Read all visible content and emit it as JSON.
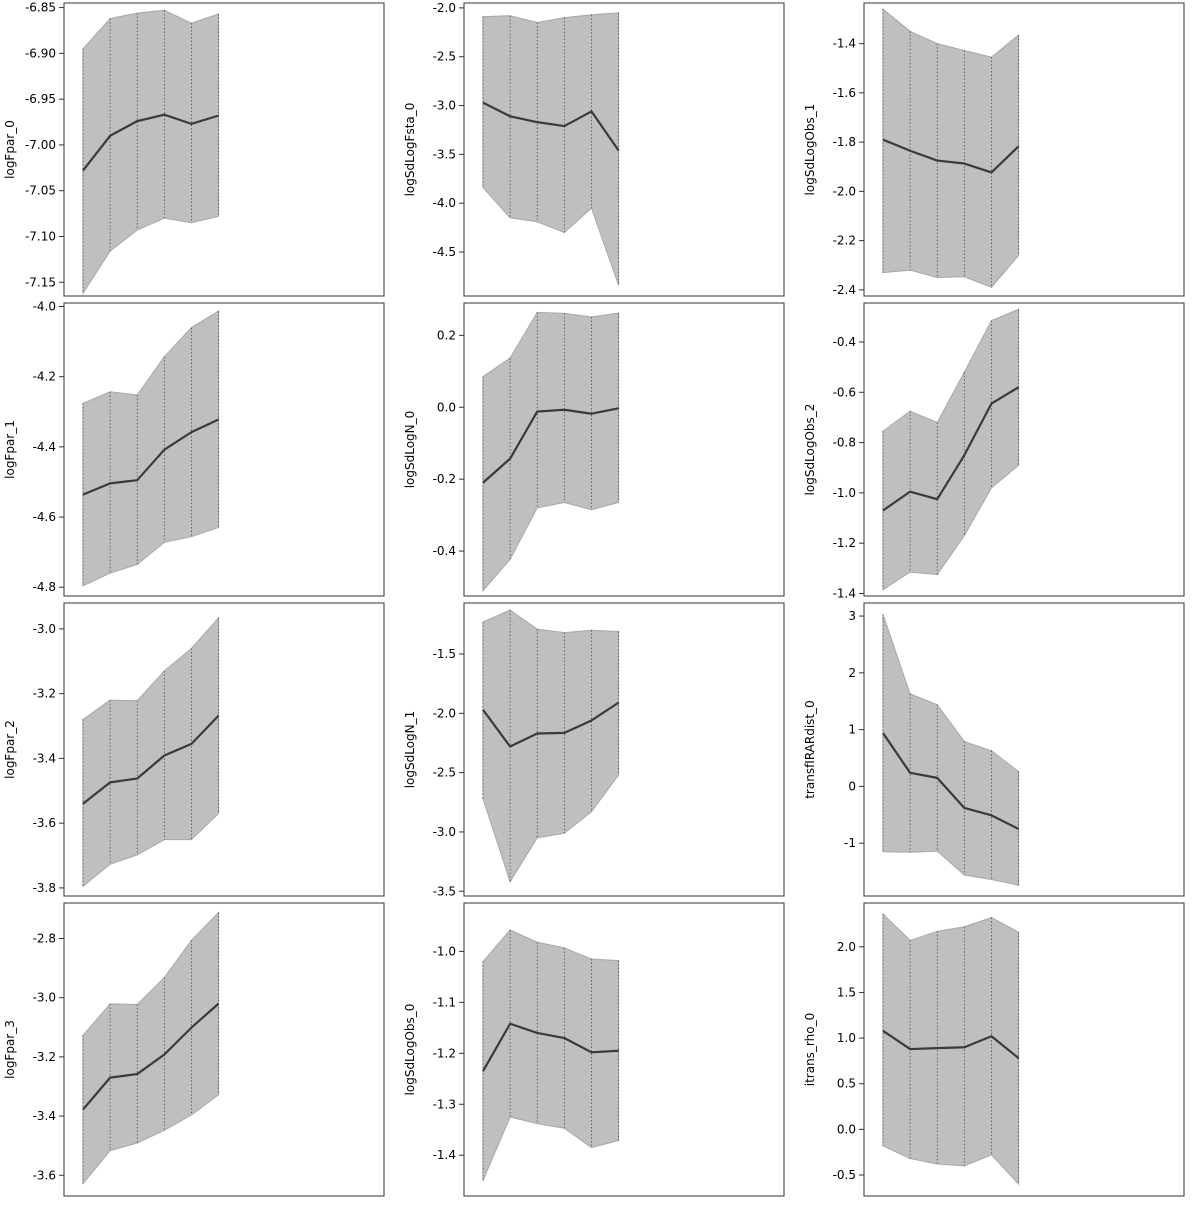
{
  "colors": {
    "band_fill": "#bfbfbf",
    "band_outline": "#a8a8a8",
    "mean_line": "#3a3a3a",
    "dotted_line": "#4d4d4d",
    "frame": "#333333"
  },
  "chart_data": [
    {
      "type": "line",
      "ylabel": "logFpar_0",
      "ylim": [
        -7.165,
        6.845
      ],
      "yticks": [
        -6.85,
        -6.9,
        -6.95,
        -7.0,
        -7.05,
        -7.1,
        -7.15
      ],
      "x": [
        1,
        2,
        3,
        4,
        5,
        6
      ],
      "xlim": [
        0.3,
        12.1
      ],
      "mean": [
        -7.028,
        -6.99,
        -6.974,
        -6.967,
        -6.977,
        -6.968
      ],
      "lower": [
        -7.162,
        -7.116,
        -7.093,
        -7.08,
        -7.085,
        -7.078
      ],
      "upper": [
        -6.895,
        -6.862,
        -6.856,
        -6.853,
        -6.867,
        -6.857
      ]
    },
    {
      "type": "line",
      "ylabel": "logSdLogFsta_0",
      "ylim": [
        -4.95,
        -1.95
      ],
      "yticks": [
        -2.0,
        -2.5,
        -3.0,
        -3.5,
        -4.0,
        -4.5
      ],
      "x": [
        1,
        2,
        3,
        4,
        5,
        6
      ],
      "xlim": [
        0.3,
        12.1
      ],
      "mean": [
        -2.97,
        -3.11,
        -3.17,
        -3.21,
        -3.06,
        -3.46
      ],
      "lower": [
        -3.84,
        -4.15,
        -4.19,
        -4.3,
        -4.05,
        -4.84
      ],
      "upper": [
        -2.09,
        -2.08,
        -2.15,
        -2.1,
        -2.07,
        -2.05
      ]
    },
    {
      "type": "line",
      "ylabel": "logSdLogObs_1",
      "ylim": [
        -2.425,
        -1.235
      ],
      "yticks": [
        -1.4,
        -1.6,
        -1.8,
        -2.0,
        -2.2,
        -2.4
      ],
      "x": [
        1,
        2,
        3,
        4,
        5,
        6
      ],
      "xlim": [
        0.3,
        12.1
      ],
      "mean": [
        -1.79,
        -1.835,
        -1.875,
        -1.887,
        -1.923,
        -1.817
      ],
      "lower": [
        -2.33,
        -2.32,
        -2.35,
        -2.347,
        -2.39,
        -2.26
      ],
      "upper": [
        -1.26,
        -1.35,
        -1.4,
        -1.428,
        -1.455,
        -1.365
      ]
    },
    {
      "type": "line",
      "ylabel": "logFpar_1",
      "ylim": [
        -4.825,
        -3.99
      ],
      "yticks": [
        -4.0,
        -4.2,
        -4.4,
        -4.6,
        -4.8
      ],
      "x": [
        1,
        2,
        3,
        4,
        5,
        6
      ],
      "xlim": [
        0.3,
        12.1
      ],
      "mean": [
        -4.536,
        -4.504,
        -4.495,
        -4.408,
        -4.358,
        -4.322
      ],
      "lower": [
        -4.796,
        -4.76,
        -4.735,
        -4.672,
        -4.656,
        -4.63
      ],
      "upper": [
        -4.276,
        -4.243,
        -4.252,
        -4.143,
        -4.06,
        -4.013
      ]
    },
    {
      "type": "line",
      "ylabel": "logSdLogN_0",
      "ylim": [
        -0.525,
        0.29
      ],
      "yticks": [
        0.2,
        0.0,
        -0.2,
        -0.4
      ],
      "x": [
        1,
        2,
        3,
        4,
        5,
        6
      ],
      "xlim": [
        0.3,
        12.1
      ],
      "mean": [
        -0.21,
        -0.143,
        -0.012,
        -0.007,
        -0.018,
        -0.003
      ],
      "lower": [
        -0.51,
        -0.423,
        -0.28,
        -0.265,
        -0.285,
        -0.265
      ],
      "upper": [
        0.085,
        0.137,
        0.264,
        0.261,
        0.251,
        0.262
      ]
    },
    {
      "type": "line",
      "ylabel": "logSdLogObs_2",
      "ylim": [
        -1.41,
        -0.245
      ],
      "yticks": [
        -0.4,
        -0.6,
        -0.8,
        -1.0,
        -1.2,
        -1.4
      ],
      "x": [
        1,
        2,
        3,
        4,
        5,
        6
      ],
      "xlim": [
        0.3,
        12.1
      ],
      "mean": [
        -1.07,
        -0.995,
        -1.025,
        -0.85,
        -0.645,
        -0.58
      ],
      "lower": [
        -1.385,
        -1.315,
        -1.325,
        -1.17,
        -0.98,
        -0.89
      ],
      "upper": [
        -0.755,
        -0.675,
        -0.72,
        -0.52,
        -0.315,
        -0.27
      ]
    },
    {
      "type": "line",
      "ylabel": "logFpar_2",
      "ylim": [
        -3.825,
        -2.92
      ],
      "yticks": [
        -3.0,
        -3.2,
        -3.4,
        -3.6,
        -3.8
      ],
      "x": [
        1,
        2,
        3,
        4,
        5,
        6
      ],
      "xlim": [
        0.3,
        12.1
      ],
      "mean": [
        -3.54,
        -3.474,
        -3.462,
        -3.391,
        -3.355,
        -3.268
      ],
      "lower": [
        -3.795,
        -3.727,
        -3.698,
        -3.651,
        -3.651,
        -3.57
      ],
      "upper": [
        -3.28,
        -3.22,
        -3.222,
        -3.13,
        -3.06,
        -2.966
      ]
    },
    {
      "type": "line",
      "ylabel": "logSdLogN_1",
      "ylim": [
        -3.54,
        -1.07
      ],
      "yticks": [
        -1.5,
        -2.0,
        -2.5,
        -3.0,
        -3.5
      ],
      "x": [
        1,
        2,
        3,
        4,
        5,
        6
      ],
      "xlim": [
        0.3,
        12.1
      ],
      "mean": [
        -1.97,
        -2.28,
        -2.17,
        -2.165,
        -2.06,
        -1.91
      ],
      "lower": [
        -2.72,
        -3.42,
        -3.05,
        -3.01,
        -2.83,
        -2.52
      ],
      "upper": [
        -1.23,
        -1.13,
        -1.29,
        -1.32,
        -1.3,
        -1.31
      ]
    },
    {
      "type": "line",
      "ylabel": "transfIRARdist_0",
      "ylim": [
        -1.93,
        3.23
      ],
      "yticks": [
        3,
        2,
        1,
        0,
        -1
      ],
      "x": [
        1,
        2,
        3,
        4,
        5,
        6
      ],
      "xlim": [
        0.3,
        12.1
      ],
      "mean": [
        0.94,
        0.24,
        0.15,
        -0.38,
        -0.51,
        -0.75
      ],
      "lower": [
        -1.15,
        -1.16,
        -1.14,
        -1.56,
        -1.64,
        -1.74
      ],
      "upper": [
        3.03,
        1.63,
        1.44,
        0.79,
        0.63,
        0.26
      ]
    },
    {
      "type": "line",
      "ylabel": "logFpar_3",
      "ylim": [
        -3.67,
        -2.68
      ],
      "yticks": [
        -2.8,
        -3.0,
        -3.2,
        -3.4,
        -3.6
      ],
      "x": [
        1,
        2,
        3,
        4,
        5,
        6
      ],
      "xlim": [
        0.3,
        12.1
      ],
      "mean": [
        -3.378,
        -3.27,
        -3.258,
        -3.192,
        -3.101,
        -3.02
      ],
      "lower": [
        -3.628,
        -3.517,
        -3.491,
        -3.448,
        -3.396,
        -3.328
      ],
      "upper": [
        -3.127,
        -3.021,
        -3.023,
        -2.932,
        -2.806,
        -2.712
      ]
    },
    {
      "type": "line",
      "ylabel": "logSdLogObs_0",
      "ylim": [
        -1.48,
        -0.905
      ],
      "yticks": [
        -1.0,
        -1.1,
        -1.2,
        -1.3,
        -1.4
      ],
      "x": [
        1,
        2,
        3,
        4,
        5,
        6
      ],
      "xlim": [
        0.3,
        12.1
      ],
      "mean": [
        -1.235,
        -1.142,
        -1.16,
        -1.17,
        -1.198,
        -1.195
      ],
      "lower": [
        -1.45,
        -1.325,
        -1.338,
        -1.347,
        -1.385,
        -1.371
      ],
      "upper": [
        -1.02,
        -0.958,
        -0.982,
        -0.993,
        -1.015,
        -1.018
      ]
    },
    {
      "type": "line",
      "ylabel": "itrans_rho_0",
      "ylim": [
        -0.73,
        2.48
      ],
      "yticks": [
        2.0,
        1.5,
        1.0,
        0.5,
        0.0,
        -0.5
      ],
      "x": [
        1,
        2,
        3,
        4,
        5,
        6
      ],
      "xlim": [
        0.3,
        12.1
      ],
      "mean": [
        1.08,
        0.88,
        0.89,
        0.9,
        1.02,
        0.78
      ],
      "lower": [
        -0.18,
        -0.32,
        -0.38,
        -0.4,
        -0.28,
        -0.6
      ],
      "upper": [
        2.36,
        2.07,
        2.17,
        2.22,
        2.32,
        2.16
      ]
    }
  ]
}
